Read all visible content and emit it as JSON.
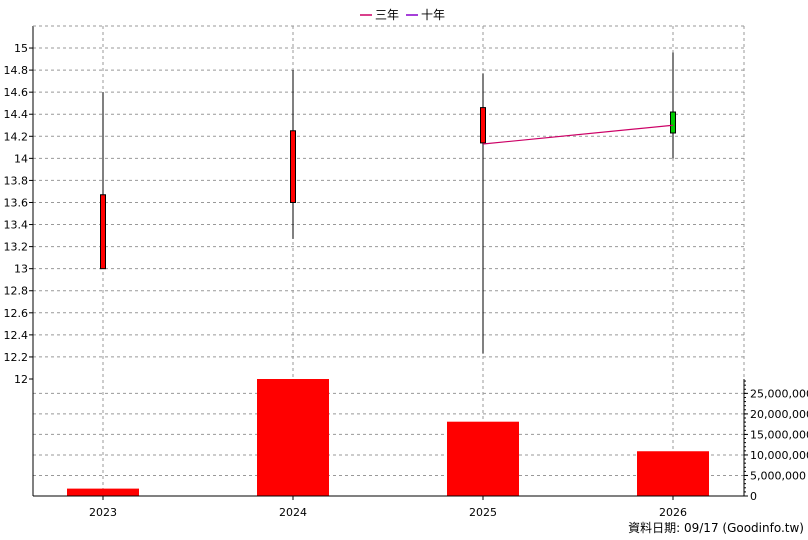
{
  "legend": {
    "items": [
      {
        "label": "三年",
        "color": "#cc0066"
      },
      {
        "label": "十年",
        "color": "#8800cc"
      }
    ]
  },
  "footer": {
    "text": "資料日期: 09/17  (Goodinfo.tw)"
  },
  "chart_data": [
    {
      "type": "candlestick",
      "title": "",
      "categories": [
        "2023",
        "2024",
        "2025",
        "2026"
      ],
      "ylim": [
        12,
        15.1
      ],
      "y_ticks": [
        12,
        12.2,
        12.4,
        12.6,
        12.8,
        13,
        13.2,
        13.4,
        13.6,
        13.8,
        14,
        14.2,
        14.4,
        14.6,
        14.8,
        15
      ],
      "grid": true,
      "candles": [
        {
          "x": "2023",
          "open": 13.0,
          "close": 13.67,
          "high": 14.6,
          "low": 13.0,
          "color": "#ff0000"
        },
        {
          "x": "2024",
          "open": 13.6,
          "close": 14.25,
          "high": 14.8,
          "low": 13.27,
          "color": "#ff0000"
        },
        {
          "x": "2025",
          "open": 14.14,
          "close": 14.46,
          "high": 14.77,
          "low": 12.23,
          "color": "#ff0000"
        },
        {
          "x": "2026",
          "open": 14.42,
          "close": 14.23,
          "high": 14.96,
          "low": 14.0,
          "color": "#00cc00"
        }
      ],
      "series": [
        {
          "name": "三年",
          "color": "#cc0066",
          "x": [
            "2025",
            "2026"
          ],
          "values": [
            14.13,
            14.3
          ]
        }
      ]
    },
    {
      "type": "bar",
      "title": "",
      "categories": [
        "2023",
        "2024",
        "2025",
        "2026"
      ],
      "values": [
        1800000,
        28500000,
        18100000,
        10900000
      ],
      "ylim": [
        0,
        28500000
      ],
      "y_ticks": [
        0,
        5000000,
        10000000,
        15000000,
        20000000,
        25000000
      ],
      "y_tick_labels": [
        "0",
        "5,000,000",
        "10,000,000",
        "15,000,000",
        "20,000,000",
        "25,000,000"
      ],
      "x_tick_labels": [
        "2023",
        "2024",
        "2025",
        "2026"
      ],
      "color": "#ff0000",
      "grid": true
    }
  ]
}
